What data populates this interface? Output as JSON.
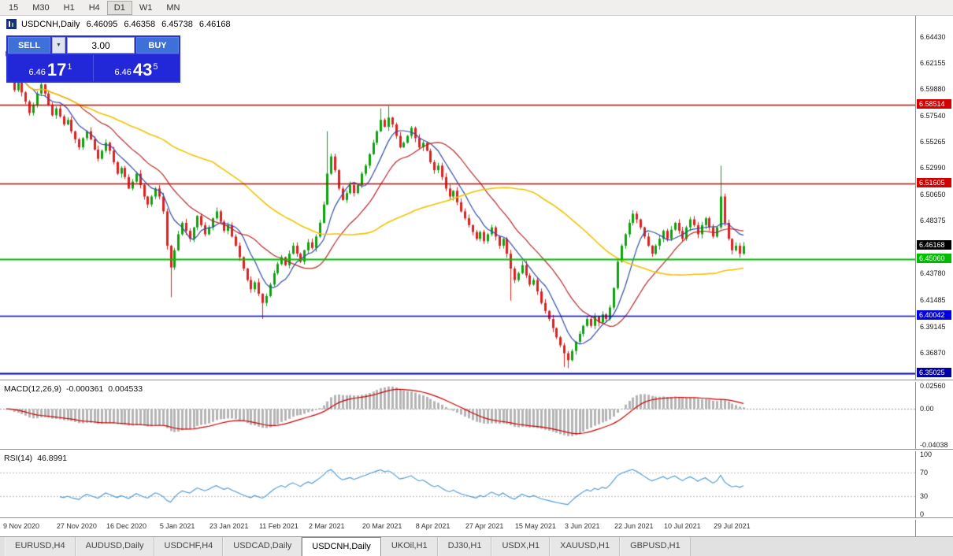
{
  "toolbar": {
    "timeframes": [
      "15",
      "M30",
      "H1",
      "H4",
      "D1",
      "W1",
      "MN"
    ],
    "active": "D1"
  },
  "chart": {
    "symbol_title": "USDCNH,Daily",
    "open": "6.46095",
    "high": "6.46358",
    "low": "6.45738",
    "close": "6.46168"
  },
  "icons": {
    "dropdown": "▼"
  },
  "trade_panel": {
    "sell_label": "SELL",
    "buy_label": "BUY",
    "volume": "3.00",
    "sell_price_small": "6.46",
    "sell_price_big": "17",
    "sell_price_sup": "1",
    "buy_price_small": "6.46",
    "buy_price_big": "43",
    "buy_price_sup": "5"
  },
  "price_axis": {
    "labels": [
      {
        "value": 6.6443,
        "text": "6.64430"
      },
      {
        "value": 6.62155,
        "text": "6.62155"
      },
      {
        "value": 6.5988,
        "text": "6.59880"
      },
      {
        "value": 6.5754,
        "text": "6.57540"
      },
      {
        "value": 6.55265,
        "text": "6.55265"
      },
      {
        "value": 6.5299,
        "text": "6.52990"
      },
      {
        "value": 6.5065,
        "text": "6.50650"
      },
      {
        "value": 6.48375,
        "text": "6.48375"
      },
      {
        "value": 6.4378,
        "text": "6.43780"
      },
      {
        "value": 6.41485,
        "text": "6.41485"
      },
      {
        "value": 6.39145,
        "text": "6.39145"
      },
      {
        "value": 6.3687,
        "text": "6.36870"
      }
    ],
    "badges": [
      {
        "value": 6.58514,
        "text": "6.58514",
        "bg": "#d40000",
        "fg": "#ffffff"
      },
      {
        "value": 6.51605,
        "text": "6.51605",
        "bg": "#d40000",
        "fg": "#ffffff"
      },
      {
        "value": 6.46168,
        "text": "6.46168",
        "bg": "#000000",
        "fg": "#ffffff"
      },
      {
        "value": 6.4506,
        "text": "6.45060",
        "bg": "#00bb00",
        "fg": "#ffffff"
      },
      {
        "value": 6.40042,
        "text": "6.40042",
        "bg": "#0000dd",
        "fg": "#ffffff"
      },
      {
        "value": 6.35025,
        "text": "6.35025",
        "bg": "#0000a6",
        "fg": "#ffffff"
      }
    ]
  },
  "hlines": [
    {
      "value": 6.58514,
      "color": "#cc0000",
      "width": 1.3
    },
    {
      "value": 6.51605,
      "color": "#cc0000",
      "width": 1.3
    },
    {
      "value": 6.4506,
      "color": "#00c000",
      "width": 2
    },
    {
      "value": 6.40042,
      "color": "#0000e0",
      "width": 1.6
    },
    {
      "value": 6.35025,
      "color": "#0000a0",
      "width": 2
    }
  ],
  "indicators": {
    "macd": {
      "name": "MACD(12,26,9)",
      "value1": "-0.000361",
      "value2": "0.004533",
      "range": [
        -0.04038,
        0.0256
      ],
      "scale": [
        {
          "value": 0.0256,
          "text": "0.02560"
        },
        {
          "value": 0,
          "text": "0.00"
        },
        {
          "value": -0.04038,
          "text": "-0.04038"
        }
      ],
      "histogram_color": "#b4b4b4",
      "signal_color": "#cc0000"
    },
    "rsi": {
      "name": "RSI(14)",
      "value": "46.8991",
      "scale": [
        {
          "value": 100,
          "text": "100"
        },
        {
          "value": 70,
          "text": "70"
        },
        {
          "value": 30,
          "text": "30"
        },
        {
          "value": 0,
          "text": "0"
        }
      ],
      "levels": [
        70,
        30
      ],
      "line_color": "#4a96d2"
    }
  },
  "date_axis": {
    "ticks": [
      {
        "index": 0,
        "label": "9 Nov 2020"
      },
      {
        "index": 14,
        "label": "27 Nov 2020"
      },
      {
        "index": 27,
        "label": "16 Dec 2020"
      },
      {
        "index": 41,
        "label": "5 Jan 2021"
      },
      {
        "index": 54,
        "label": "23 Jan 2021"
      },
      {
        "index": 67,
        "label": "11 Feb 2021"
      },
      {
        "index": 80,
        "label": "2 Mar 2021"
      },
      {
        "index": 94,
        "label": "20 Mar 2021"
      },
      {
        "index": 108,
        "label": "8 Apr 2021"
      },
      {
        "index": 121,
        "label": "27 Apr 2021"
      },
      {
        "index": 134,
        "label": "15 May 2021"
      },
      {
        "index": 147,
        "label": "3 Jun 2021"
      },
      {
        "index": 160,
        "label": "22 Jun 2021"
      },
      {
        "index": 173,
        "label": "10 Jul 2021"
      },
      {
        "index": 186,
        "label": "29 Jul 2021"
      }
    ]
  },
  "tabs": {
    "items": [
      "EURUSD,H4",
      "AUDUSD,Daily",
      "USDCHF,H4",
      "USDCAD,Daily",
      "USDCNH,Daily",
      "UKOil,H1",
      "DJ30,H1",
      "USDX,H1",
      "XAUUSD,H1",
      "GBPUSD,H1"
    ],
    "active_index": 4
  },
  "chart_data": {
    "type": "candlestick",
    "symbol": "USDCNH",
    "timeframe": "Daily",
    "ylim": [
      6.345,
      6.663
    ],
    "candle_up_color": "#0fa00f",
    "candle_down_color": "#dd2020",
    "moving_averages": [
      {
        "period": 8,
        "color": "#2f4ca8",
        "width": 1.2
      },
      {
        "period": 20,
        "color": "#b82828",
        "width": 1.2
      },
      {
        "period": 55,
        "color": "#f2c200",
        "width": 1.6
      }
    ],
    "closes": [
      6.628,
      6.612,
      6.598,
      6.605,
      6.596,
      6.588,
      6.578,
      6.585,
      6.595,
      6.603,
      6.595,
      6.585,
      6.576,
      6.582,
      6.575,
      6.568,
      6.572,
      6.562,
      6.555,
      6.548,
      6.556,
      6.562,
      6.555,
      6.546,
      6.538,
      6.545,
      6.552,
      6.545,
      6.535,
      6.525,
      6.53,
      6.522,
      6.512,
      6.518,
      6.525,
      6.515,
      6.505,
      6.498,
      6.505,
      6.512,
      6.505,
      6.492,
      6.462,
      6.443,
      6.458,
      6.472,
      6.482,
      6.475,
      6.468,
      6.478,
      6.488,
      6.48,
      6.472,
      6.478,
      6.486,
      6.492,
      6.483,
      6.475,
      6.48,
      6.47,
      6.462,
      6.452,
      6.442,
      6.432,
      6.424,
      6.43,
      6.42,
      6.412,
      6.418,
      6.428,
      6.438,
      6.446,
      6.452,
      6.445,
      6.455,
      6.462,
      6.455,
      6.448,
      6.458,
      6.465,
      6.46,
      6.47,
      6.482,
      6.498,
      6.525,
      6.54,
      6.528,
      6.512,
      6.502,
      6.508,
      6.515,
      6.508,
      6.515,
      6.525,
      6.532,
      6.542,
      6.552,
      6.562,
      6.572,
      6.566,
      6.574,
      6.568,
      6.558,
      6.548,
      6.552,
      6.558,
      6.565,
      6.556,
      6.548,
      6.552,
      6.545,
      6.535,
      6.528,
      6.532,
      6.522,
      6.512,
      6.505,
      6.51,
      6.5,
      6.492,
      6.486,
      6.48,
      6.474,
      6.468,
      6.474,
      6.466,
      6.472,
      6.478,
      6.47,
      6.462,
      6.468,
      6.455,
      6.442,
      6.432,
      6.438,
      6.445,
      6.436,
      6.428,
      6.432,
      6.422,
      6.412,
      6.405,
      6.398,
      6.39,
      6.382,
      6.375,
      6.368,
      6.362,
      6.37,
      6.378,
      6.385,
      6.392,
      6.398,
      6.392,
      6.4,
      6.395,
      6.402,
      6.398,
      6.408,
      6.425,
      6.448,
      6.462,
      6.472,
      6.482,
      6.49,
      6.485,
      6.478,
      6.47,
      6.462,
      6.455,
      6.462,
      6.468,
      6.475,
      6.468,
      6.476,
      6.482,
      6.475,
      6.468,
      6.478,
      6.485,
      6.48,
      6.472,
      6.48,
      6.486,
      6.478,
      6.47,
      6.478,
      6.505,
      6.482,
      6.468,
      6.458,
      6.462,
      6.455,
      6.4617
    ],
    "key_wicks": {
      "43": {
        "low": 6.417
      },
      "67": {
        "low": 6.398
      },
      "84": {
        "high": 6.562
      },
      "98": {
        "high": 6.582
      },
      "100": {
        "high": 6.584
      },
      "132": {
        "low": 6.414
      },
      "146": {
        "low": 6.356
      },
      "147": {
        "low": 6.355
      },
      "187": {
        "high": 6.532
      }
    }
  }
}
